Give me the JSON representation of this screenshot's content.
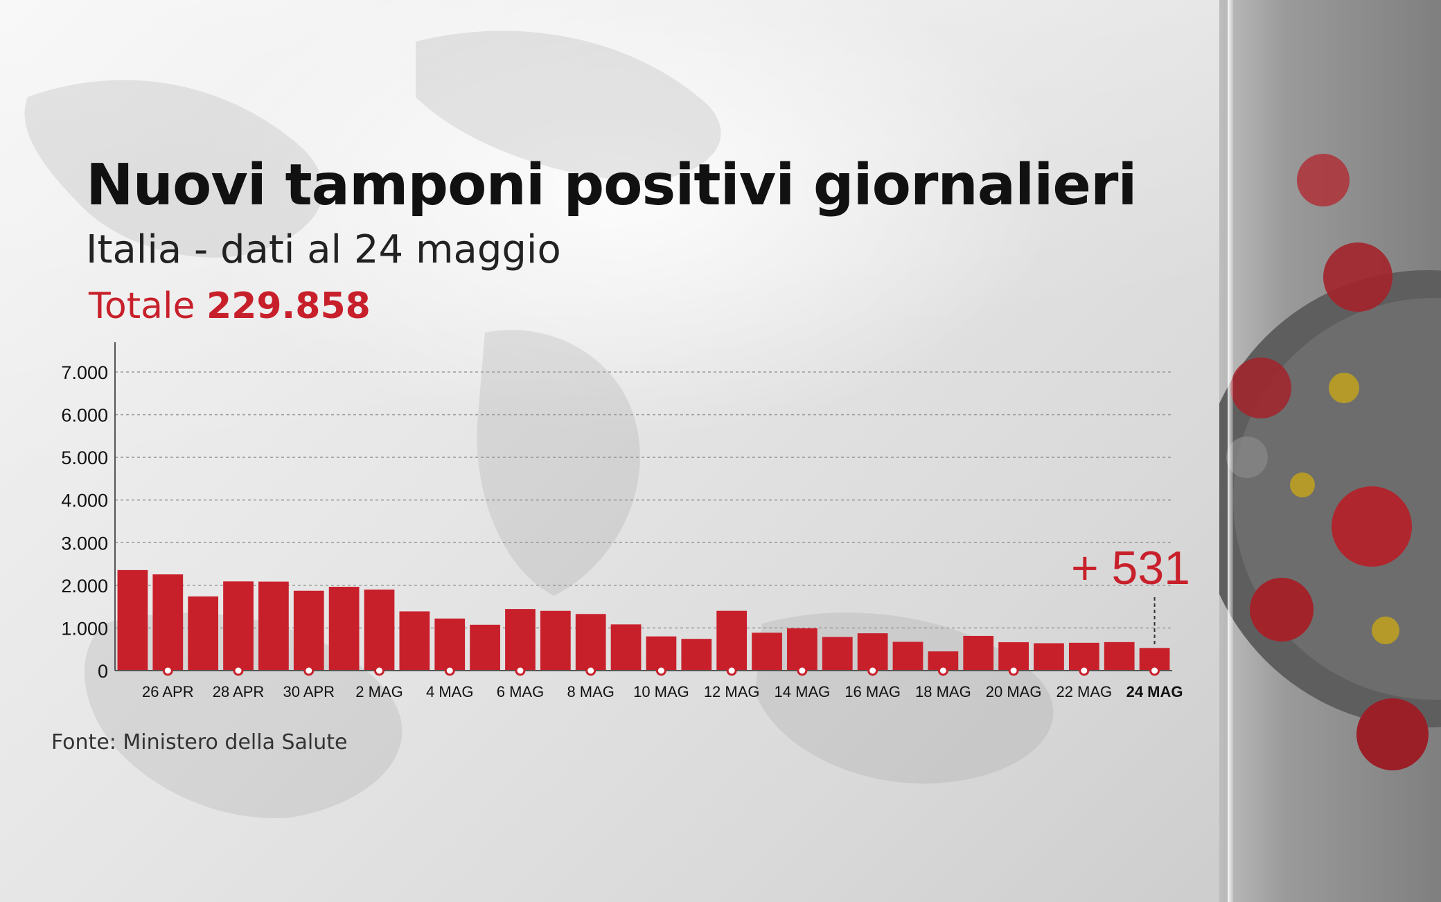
{
  "title": "Nuovi tamponi positivi giornalieri",
  "subtitle": "Italia - dati al 24 maggio",
  "total": {
    "label": "Totale",
    "value": "229.858"
  },
  "callout": "+ 531",
  "source": "Fonte: Ministero della Salute",
  "colors": {
    "bar": "#c8202b",
    "accent": "#c8202b",
    "text": "#111111"
  },
  "chart_data": {
    "type": "bar",
    "title": "Nuovi tamponi positivi giornalieri",
    "subtitle": "Italia - dati al 24 maggio",
    "xlabel": "",
    "ylabel": "",
    "ylim": [
      0,
      7000
    ],
    "yticks": [
      0,
      1000,
      2000,
      3000,
      4000,
      5000,
      6000,
      7000
    ],
    "ytick_labels": [
      "0",
      "1.000",
      "2.000",
      "3.000",
      "4.000",
      "5.000",
      "6.000",
      "7.000"
    ],
    "grid": true,
    "legend": "none",
    "categories": [
      "25 APR",
      "26 APR",
      "27 APR",
      "28 APR",
      "29 APR",
      "30 APR",
      "1 MAG",
      "2 MAG",
      "3 MAG",
      "4 MAG",
      "5 MAG",
      "6 MAG",
      "7 MAG",
      "8 MAG",
      "9 MAG",
      "10 MAG",
      "11 MAG",
      "12 MAG",
      "13 MAG",
      "14 MAG",
      "15 MAG",
      "16 MAG",
      "17 MAG",
      "18 MAG",
      "19 MAG",
      "20 MAG",
      "21 MAG",
      "22 MAG",
      "23 MAG",
      "24 MAG"
    ],
    "values": [
      2357,
      2256,
      1739,
      2091,
      2086,
      1872,
      1965,
      1900,
      1389,
      1221,
      1075,
      1444,
      1401,
      1327,
      1083,
      802,
      744,
      1402,
      888,
      992,
      789,
      875,
      675,
      451,
      813,
      665,
      642,
      652,
      669,
      531
    ],
    "tick_labels": [
      {
        "category": "26 APR",
        "label": "26 APR"
      },
      {
        "category": "28 APR",
        "label": "28 APR"
      },
      {
        "category": "30 APR",
        "label": "30 APR"
      },
      {
        "category": "2 MAG",
        "label": "2 MAG"
      },
      {
        "category": "4 MAG",
        "label": "4 MAG"
      },
      {
        "category": "6 MAG",
        "label": "6 MAG"
      },
      {
        "category": "8 MAG",
        "label": "8 MAG"
      },
      {
        "category": "10 MAG",
        "label": "10 MAG"
      },
      {
        "category": "12 MAG",
        "label": "12 MAG"
      },
      {
        "category": "14 MAG",
        "label": "14 MAG"
      },
      {
        "category": "16 MAG",
        "label": "16 MAG"
      },
      {
        "category": "18 MAG",
        "label": "18 MAG"
      },
      {
        "category": "20 MAG",
        "label": "20 MAG"
      },
      {
        "category": "22 MAG",
        "label": "22 MAG"
      },
      {
        "category": "24 MAG",
        "label": "24 MAG"
      }
    ],
    "highlight_category": "24 MAG",
    "annotations": [
      {
        "category": "24 MAG",
        "text": "+ 531"
      }
    ]
  }
}
